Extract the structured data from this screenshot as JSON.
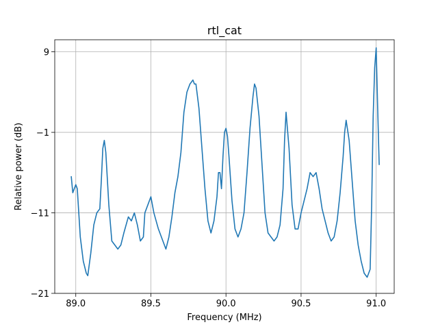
{
  "chart_data": {
    "type": "line",
    "title": "rtl_cat",
    "xlabel": "Frequency (MHz)",
    "ylabel": "Relative power (dB)",
    "xlim": [
      88.86,
      91.12
    ],
    "ylim": [
      -21,
      10.5
    ],
    "xticks": [
      89.0,
      89.5,
      90.0,
      90.5,
      91.0
    ],
    "xtick_labels": [
      "89.0",
      "89.5",
      "90.0",
      "90.5",
      "91.0"
    ],
    "yticks": [
      -21,
      -11,
      -1,
      9
    ],
    "ytick_labels": [
      "−21",
      "−11",
      "−1",
      "9"
    ],
    "grid": true,
    "series": [
      {
        "color": "#1f77b4",
        "x": [
          88.97,
          88.98,
          89.0,
          89.01,
          89.02,
          89.03,
          89.05,
          89.07,
          89.08,
          89.1,
          89.12,
          89.14,
          89.16,
          89.17,
          89.18,
          89.19,
          89.2,
          89.22,
          89.24,
          89.26,
          89.28,
          89.3,
          89.32,
          89.35,
          89.37,
          89.39,
          89.41,
          89.43,
          89.45,
          89.46,
          89.48,
          89.5,
          89.52,
          89.55,
          89.57,
          89.59,
          89.6,
          89.62,
          89.64,
          89.66,
          89.68,
          89.7,
          89.72,
          89.74,
          89.76,
          89.78,
          89.79,
          89.8,
          89.82,
          89.84,
          89.86,
          89.88,
          89.9,
          89.92,
          89.94,
          89.95,
          89.96,
          89.97,
          89.98,
          89.99,
          90.0,
          90.01,
          90.02,
          90.04,
          90.06,
          90.08,
          90.1,
          90.12,
          90.14,
          90.16,
          90.18,
          90.19,
          90.2,
          90.22,
          90.24,
          90.26,
          90.28,
          90.3,
          90.32,
          90.34,
          90.36,
          90.38,
          90.39,
          90.4,
          90.42,
          90.44,
          90.46,
          90.48,
          90.5,
          90.52,
          90.54,
          90.56,
          90.58,
          90.6,
          90.62,
          90.64,
          90.66,
          90.68,
          90.7,
          90.72,
          90.74,
          90.76,
          90.78,
          90.79,
          90.8,
          90.82,
          90.84,
          90.86,
          90.88,
          90.9,
          90.92,
          90.94,
          90.96,
          90.97,
          90.98,
          90.99,
          91.0,
          91.01,
          91.02
        ],
        "y": [
          -6.5,
          -8.5,
          -7.5,
          -8.0,
          -11.0,
          -14.0,
          -17.0,
          -18.5,
          -18.8,
          -16.0,
          -12.5,
          -11.0,
          -10.5,
          -7.0,
          -3.0,
          -2.0,
          -3.5,
          -10.0,
          -14.5,
          -15.0,
          -15.5,
          -15.0,
          -13.5,
          -11.5,
          -12.0,
          -11.0,
          -12.5,
          -14.5,
          -14.0,
          -11.0,
          -10.0,
          -9.0,
          -11.0,
          -13.0,
          -14.0,
          -15.0,
          -15.5,
          -14.0,
          -11.5,
          -8.5,
          -6.5,
          -3.5,
          1.5,
          4.0,
          5.0,
          5.5,
          5.0,
          5.0,
          2.0,
          -3.0,
          -8.0,
          -12.0,
          -13.5,
          -12.0,
          -9.0,
          -6.0,
          -6.0,
          -8.0,
          -4.0,
          -1.0,
          -0.5,
          -1.5,
          -4.0,
          -9.5,
          -13.0,
          -14.0,
          -13.0,
          -11.0,
          -6.0,
          -0.5,
          3.5,
          5.0,
          4.5,
          1.0,
          -5.0,
          -11.0,
          -13.5,
          -14.0,
          -14.5,
          -14.0,
          -12.5,
          -8.0,
          -2.0,
          1.5,
          -3.0,
          -10.0,
          -13.0,
          -13.0,
          -11.0,
          -9.5,
          -8.0,
          -6.0,
          -6.5,
          -6.0,
          -8.0,
          -10.5,
          -12.0,
          -13.5,
          -14.5,
          -14.0,
          -12.0,
          -8.5,
          -4.0,
          -1.0,
          0.5,
          -2.0,
          -7.0,
          -12.0,
          -15.0,
          -17.0,
          -18.5,
          -19.0,
          -18.0,
          -10.0,
          1.0,
          7.0,
          9.5,
          2.0,
          -5.0
        ]
      }
    ]
  }
}
